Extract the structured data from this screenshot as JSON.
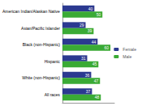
{
  "chart_data": {
    "type": "bar",
    "orientation": "horizontal",
    "categories": [
      "American Indian/Alaskan Native",
      "Asian/Pacific Islander",
      "Black (non-Hispanic)",
      "Hispanic",
      "White (non-Hispanic)",
      "All races"
    ],
    "series": [
      {
        "name": "Female",
        "color": "#2b3990",
        "values": [
          40,
          29,
          44,
          31,
          36,
          37
        ]
      },
      {
        "name": "Male",
        "color": "#3aaa35",
        "values": [
          50,
          39,
          60,
          45,
          47,
          48
        ]
      }
    ],
    "xlim": [
      0,
      65
    ],
    "data_labels": true,
    "tick_labels": "y",
    "legend": "right",
    "grid": false
  }
}
